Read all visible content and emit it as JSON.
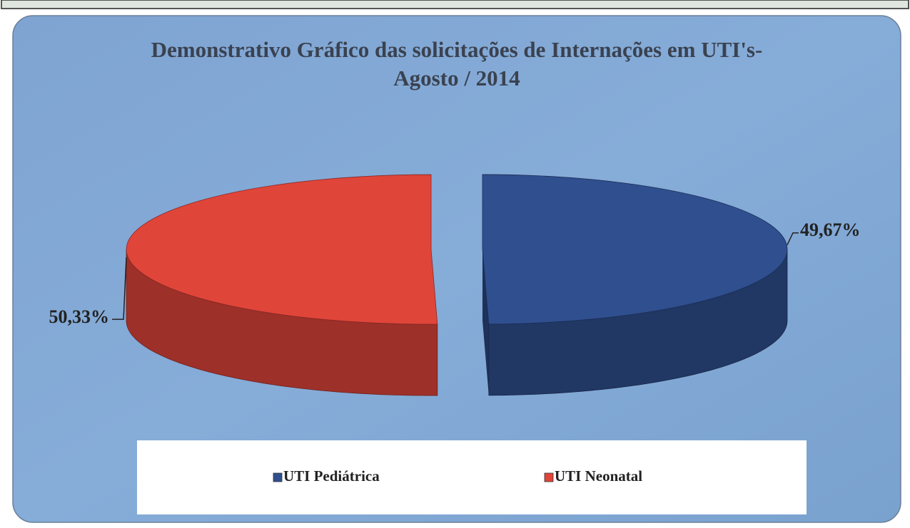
{
  "chart_data": {
    "type": "pie",
    "title": "Demonstrativo Gráfico das solicitações de Internações em UTI's- Agosto / 2014",
    "categories": [
      "UTI Pediátrica",
      "UTI Neonatal"
    ],
    "values": [
      49.67,
      50.33
    ],
    "value_labels": [
      "49,67%",
      "50,33%"
    ],
    "colors": [
      "#2f4f8f",
      "#e0453a"
    ],
    "legend": "bottom"
  }
}
